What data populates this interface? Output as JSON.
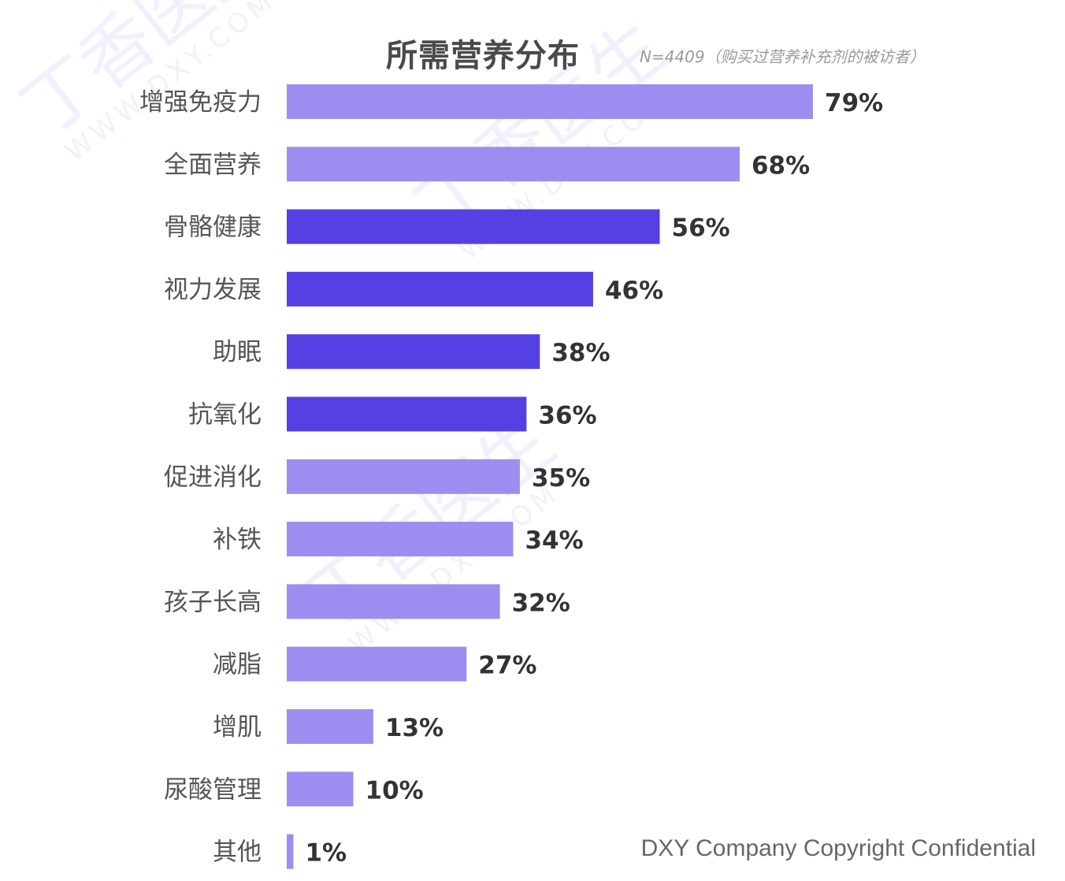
{
  "title": "所需营养分布",
  "subtitle": "N=4409（购买过营养补充剂的被访者）",
  "footer": "DXY Company Copyright Confidential",
  "watermark": {
    "line1": "丁香医生",
    "line2": "WWW.DXY.COM"
  },
  "colors": {
    "light": "#9c8ef0",
    "dark": "#5540e4"
  },
  "chart_data": {
    "type": "bar",
    "orientation": "horizontal",
    "categories": [
      "增强免疫力",
      "全面营养",
      "骨骼健康",
      "视力发展",
      "助眠",
      "抗氧化",
      "促进消化",
      "补铁",
      "孩子长高",
      "减脂",
      "增肌",
      "尿酸管理",
      "其他"
    ],
    "values": [
      79,
      68,
      56,
      46,
      38,
      36,
      35,
      34,
      32,
      27,
      13,
      10,
      1
    ],
    "value_labels": [
      "79%",
      "68%",
      "56%",
      "46%",
      "38%",
      "36%",
      "35%",
      "34%",
      "32%",
      "27%",
      "13%",
      "10%",
      "1%"
    ],
    "highlight": [
      false,
      false,
      true,
      true,
      true,
      true,
      false,
      false,
      false,
      false,
      false,
      false,
      false
    ],
    "unit": "%",
    "xlim": [
      0,
      100
    ],
    "grid": false,
    "legend": "none"
  }
}
